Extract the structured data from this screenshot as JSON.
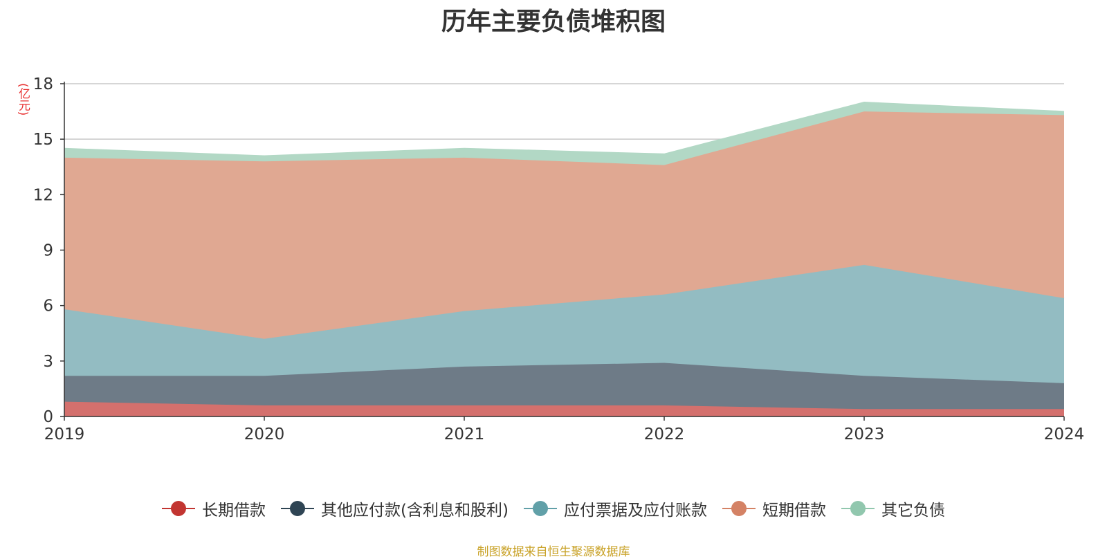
{
  "title": "历年主要负债堆积图",
  "unit_label": "(亿元)",
  "source": "制图数据来自恒生聚源数据库",
  "chart_data": {
    "type": "area",
    "stacked": true,
    "title": "历年主要负债堆积图",
    "ylabel": "(亿元)",
    "x": [
      "2019",
      "2020",
      "2021",
      "2022",
      "2023",
      "2024"
    ],
    "ylim": [
      0,
      18
    ],
    "yticks": [
      0,
      3,
      6,
      9,
      12,
      15,
      18
    ],
    "grid": true,
    "legend_position": "bottom",
    "series": [
      {
        "name": "长期借款",
        "color": "#c23531",
        "fill": "#d4706d",
        "values": [
          0.8,
          0.6,
          0.6,
          0.6,
          0.4,
          0.4
        ]
      },
      {
        "name": "其他应付款(含利息和股利)",
        "color": "#2f4554",
        "fill": "#6e7b87",
        "values": [
          1.4,
          1.6,
          2.1,
          2.3,
          1.8,
          1.4
        ]
      },
      {
        "name": "应付票据及应付账款",
        "color": "#61a0a8",
        "fill": "#93bcc2",
        "values": [
          3.6,
          2.0,
          3.0,
          3.7,
          6.0,
          4.6
        ]
      },
      {
        "name": "短期借款",
        "color": "#d48265",
        "fill": "#e0a892",
        "values": [
          8.2,
          9.6,
          8.3,
          7.0,
          8.3,
          9.9
        ]
      },
      {
        "name": "其它负债",
        "color": "#91c7ae",
        "fill": "#b2d8c5",
        "values": [
          0.5,
          0.3,
          0.5,
          0.6,
          0.5,
          0.2
        ]
      }
    ]
  }
}
